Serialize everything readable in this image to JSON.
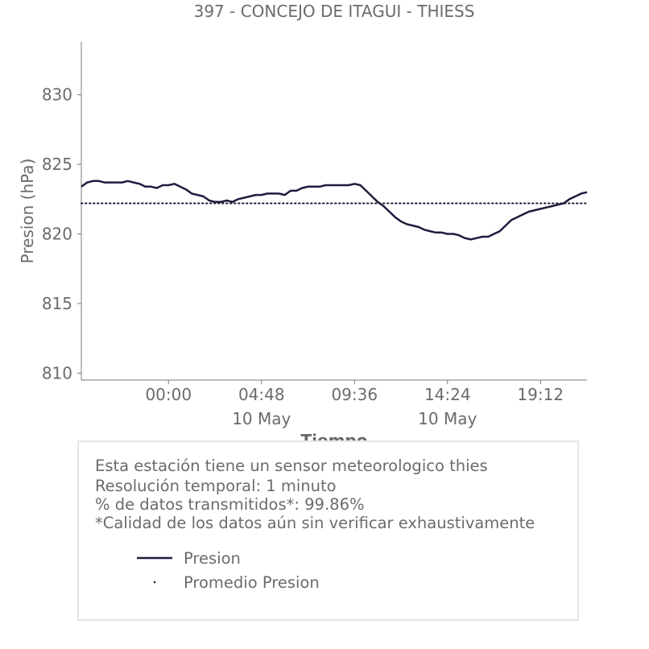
{
  "chart_data": {
    "type": "line",
    "title": "397 - CONCEJO DE ITAGUI - THIESS",
    "xlabel": "Tiempo",
    "ylabel": "Presion (hPa)",
    "ylim": [
      809.5,
      833.8
    ],
    "yticks": [
      810,
      815,
      820,
      825,
      830
    ],
    "ytick_labels": [
      "810",
      "815",
      "820",
      "825",
      "830"
    ],
    "xlim_hours": [
      -4.5,
      21.6
    ],
    "xticks": [
      {
        "hour": 0.0,
        "label": "00:00",
        "sublabel": ""
      },
      {
        "hour": 4.8,
        "label": "04:48",
        "sublabel": "10 May"
      },
      {
        "hour": 9.6,
        "label": "09:36",
        "sublabel": ""
      },
      {
        "hour": 14.4,
        "label": "14:24",
        "sublabel": "10 May"
      },
      {
        "hour": 19.2,
        "label": "19:12",
        "sublabel": ""
      }
    ],
    "grid": false,
    "series": [
      {
        "name": "Presion",
        "color": "#1f1d3d",
        "style": "solid",
        "x_hours": [
          -4.5,
          -4.2,
          -3.9,
          -3.6,
          -3.3,
          -3.0,
          -2.7,
          -2.4,
          -2.1,
          -1.8,
          -1.5,
          -1.2,
          -0.9,
          -0.6,
          -0.3,
          0.0,
          0.3,
          0.6,
          0.9,
          1.2,
          1.5,
          1.8,
          2.1,
          2.4,
          2.7,
          3.0,
          3.3,
          3.6,
          3.9,
          4.2,
          4.5,
          4.8,
          5.1,
          5.4,
          5.7,
          6.0,
          6.3,
          6.6,
          6.9,
          7.2,
          7.5,
          7.8,
          8.1,
          8.4,
          8.7,
          9.0,
          9.3,
          9.6,
          9.9,
          10.2,
          10.5,
          10.8,
          11.1,
          11.4,
          11.7,
          12.0,
          12.3,
          12.6,
          12.9,
          13.2,
          13.5,
          13.8,
          14.1,
          14.4,
          14.7,
          15.0,
          15.3,
          15.6,
          15.9,
          16.2,
          16.5,
          16.8,
          17.1,
          17.4,
          17.7,
          18.0,
          18.3,
          18.6,
          18.9,
          19.2,
          19.5,
          19.8,
          20.1,
          20.4,
          20.7,
          21.0,
          21.3,
          21.6
        ],
        "values": [
          823.4,
          823.7,
          823.8,
          823.8,
          823.7,
          823.7,
          823.7,
          823.7,
          823.8,
          823.7,
          823.6,
          823.4,
          823.4,
          823.3,
          823.5,
          823.5,
          823.6,
          823.4,
          823.2,
          822.9,
          822.8,
          822.7,
          822.4,
          822.3,
          822.3,
          822.4,
          822.3,
          822.5,
          822.6,
          822.7,
          822.8,
          822.8,
          822.9,
          822.9,
          822.9,
          822.8,
          823.1,
          823.1,
          823.3,
          823.4,
          823.4,
          823.4,
          823.5,
          823.5,
          823.5,
          823.5,
          823.5,
          823.6,
          823.5,
          823.1,
          822.7,
          822.3,
          822.0,
          821.6,
          821.2,
          820.9,
          820.7,
          820.6,
          820.5,
          820.3,
          820.2,
          820.1,
          820.1,
          820.0,
          820.0,
          819.9,
          819.7,
          819.6,
          819.7,
          819.8,
          819.8,
          820.0,
          820.2,
          820.6,
          821.0,
          821.2,
          821.4,
          821.6,
          821.7,
          821.8,
          821.9,
          822.0,
          822.1,
          822.2,
          822.5,
          822.7,
          822.9,
          823.0
        ]
      },
      {
        "name": "Promedio Presion",
        "color": "#1f1d3d",
        "style": "dotted",
        "constant": 822.2
      }
    ]
  },
  "info": {
    "lines": [
      "Esta estación tiene un sensor meteorologico thies",
      "Resolución temporal: 1 minuto",
      "% de datos transmitidos*: 99.86%",
      "*Calidad de los datos aún sin verificar exhaustivamente"
    ],
    "legend": [
      {
        "label": "Presion",
        "marker": "line"
      },
      {
        "label": "Promedio Presion",
        "marker": "dot"
      }
    ]
  },
  "colors": {
    "text": "#6b6b6b",
    "axis": "#7a7a7a",
    "series": "#1f1d3d",
    "box_border": "#e6e6e6"
  }
}
